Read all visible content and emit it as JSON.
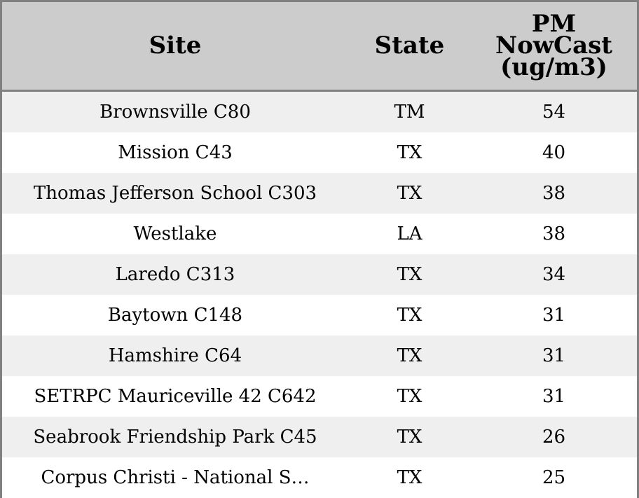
{
  "table": {
    "headers": {
      "site": "Site",
      "state": "State",
      "pm_lines": [
        "PM",
        "NowCast",
        "(ug/m3)"
      ]
    },
    "rows": [
      {
        "site": "Brownsville C80",
        "state": "TM",
        "pm": "54"
      },
      {
        "site": "Mission C43",
        "state": "TX",
        "pm": "40"
      },
      {
        "site": "Thomas Jefferson School C303",
        "state": "TX",
        "pm": "38"
      },
      {
        "site": "Westlake",
        "state": "LA",
        "pm": "38"
      },
      {
        "site": "Laredo C313",
        "state": "TX",
        "pm": "34"
      },
      {
        "site": "Baytown C148",
        "state": "TX",
        "pm": "31"
      },
      {
        "site": "Hamshire C64",
        "state": "TX",
        "pm": "31"
      },
      {
        "site": "SETRPC Mauriceville 42 C642",
        "state": "TX",
        "pm": "31"
      },
      {
        "site": "Seabrook Friendship Park C45",
        "state": "TX",
        "pm": "26"
      },
      {
        "site": "Corpus Christi - National S…",
        "state": "TX",
        "pm": "25"
      }
    ]
  },
  "colors": {
    "header_bg": "#cccccc",
    "row_alt_bg": "#efefef",
    "row_bg": "#ffffff",
    "border": "#808080"
  }
}
